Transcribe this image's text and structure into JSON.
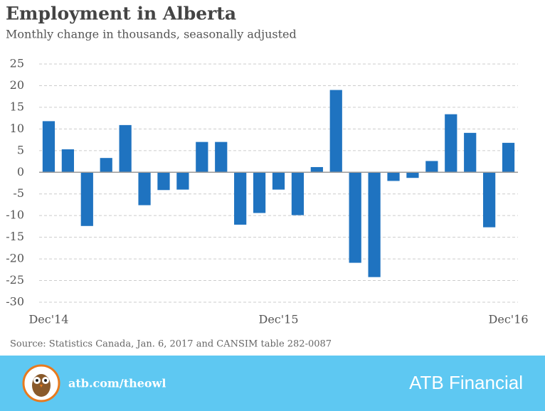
{
  "chart_data": {
    "type": "bar",
    "title": "Employment in Alberta",
    "subtitle": "Monthly change in thousands, seasonally adjusted",
    "categories": [
      "Dec'14",
      null,
      null,
      null,
      null,
      null,
      null,
      null,
      null,
      null,
      null,
      null,
      "Dec'15",
      null,
      null,
      null,
      null,
      null,
      null,
      null,
      null,
      null,
      null,
      null,
      "Dec'16"
    ],
    "values": [
      11.8,
      5.3,
      -12.4,
      3.3,
      10.9,
      -7.6,
      -4.1,
      -4.0,
      7.0,
      7.0,
      -12.1,
      -9.4,
      -4.0,
      -9.9,
      1.2,
      19.0,
      -20.9,
      -24.2,
      -2.0,
      -1.3,
      2.6,
      13.4,
      9.1,
      -12.7,
      6.8
    ],
    "color": "#1f73c0",
    "ylim": [
      -30,
      25
    ],
    "yticks": [
      -30,
      -25,
      -20,
      -15,
      -10,
      -5,
      0,
      5,
      10,
      15,
      20,
      25
    ],
    "grid": true,
    "source": "Source: Statistics Canada, Jan. 6, 2017 and CANSIM table 282-0087"
  },
  "footer": {
    "url": "atb.com/theowl",
    "brand": "ATB Financial"
  }
}
